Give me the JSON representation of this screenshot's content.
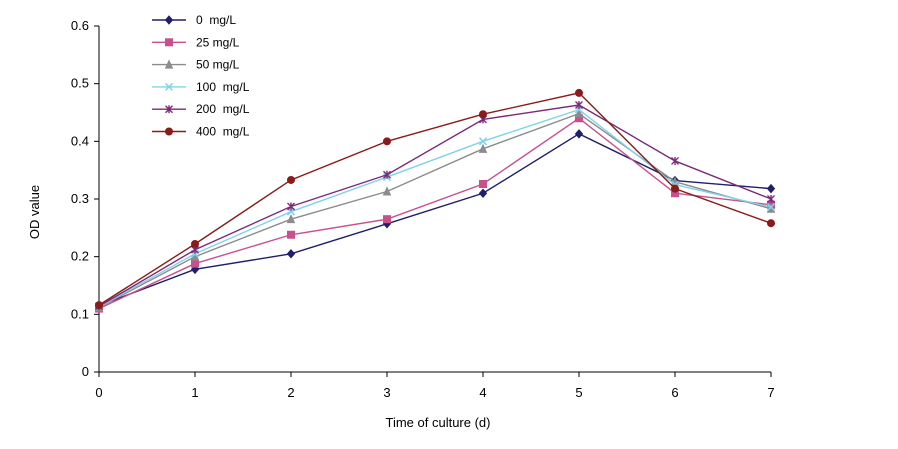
{
  "chart_data": {
    "type": "line",
    "xlabel": "Time of culture (d)",
    "ylabel": "OD value",
    "x": [
      0,
      1,
      2,
      3,
      4,
      5,
      6,
      7
    ],
    "xlim": [
      0,
      7
    ],
    "ylim": [
      0,
      0.6
    ],
    "yticks": [
      "0",
      "0.1",
      "0.2",
      "0.3",
      "0.4",
      "0.5",
      "0.6"
    ],
    "xticks": [
      "0",
      "1",
      "2",
      "3",
      "4",
      "5",
      "6",
      "7"
    ],
    "grid": false,
    "legend_position": "top-left",
    "series": [
      {
        "name": "0  mg/L",
        "color": "#1f1f6b",
        "marker": "diamond",
        "values": [
          0.115,
          0.178,
          0.205,
          0.257,
          0.31,
          0.413,
          0.332,
          0.318
        ]
      },
      {
        "name": "25 mg/L",
        "color": "#c9508c",
        "marker": "square",
        "values": [
          0.11,
          0.188,
          0.238,
          0.265,
          0.326,
          0.44,
          0.31,
          0.29
        ]
      },
      {
        "name": "50 mg/L",
        "color": "#8c8c8c",
        "marker": "triangle",
        "values": [
          0.112,
          0.2,
          0.265,
          0.313,
          0.387,
          0.448,
          0.33,
          0.283
        ]
      },
      {
        "name": "100  mg/L",
        "color": "#7fd3e6",
        "marker": "x",
        "values": [
          0.113,
          0.205,
          0.278,
          0.338,
          0.4,
          0.455,
          0.325,
          0.286
        ]
      },
      {
        "name": "200  mg/L",
        "color": "#7b2a7b",
        "marker": "star",
        "values": [
          0.114,
          0.212,
          0.287,
          0.342,
          0.438,
          0.463,
          0.366,
          0.3
        ]
      },
      {
        "name": "400  mg/L",
        "color": "#8b1a1a",
        "marker": "circle",
        "values": [
          0.116,
          0.222,
          0.333,
          0.4,
          0.447,
          0.484,
          0.318,
          0.258
        ]
      }
    ]
  }
}
